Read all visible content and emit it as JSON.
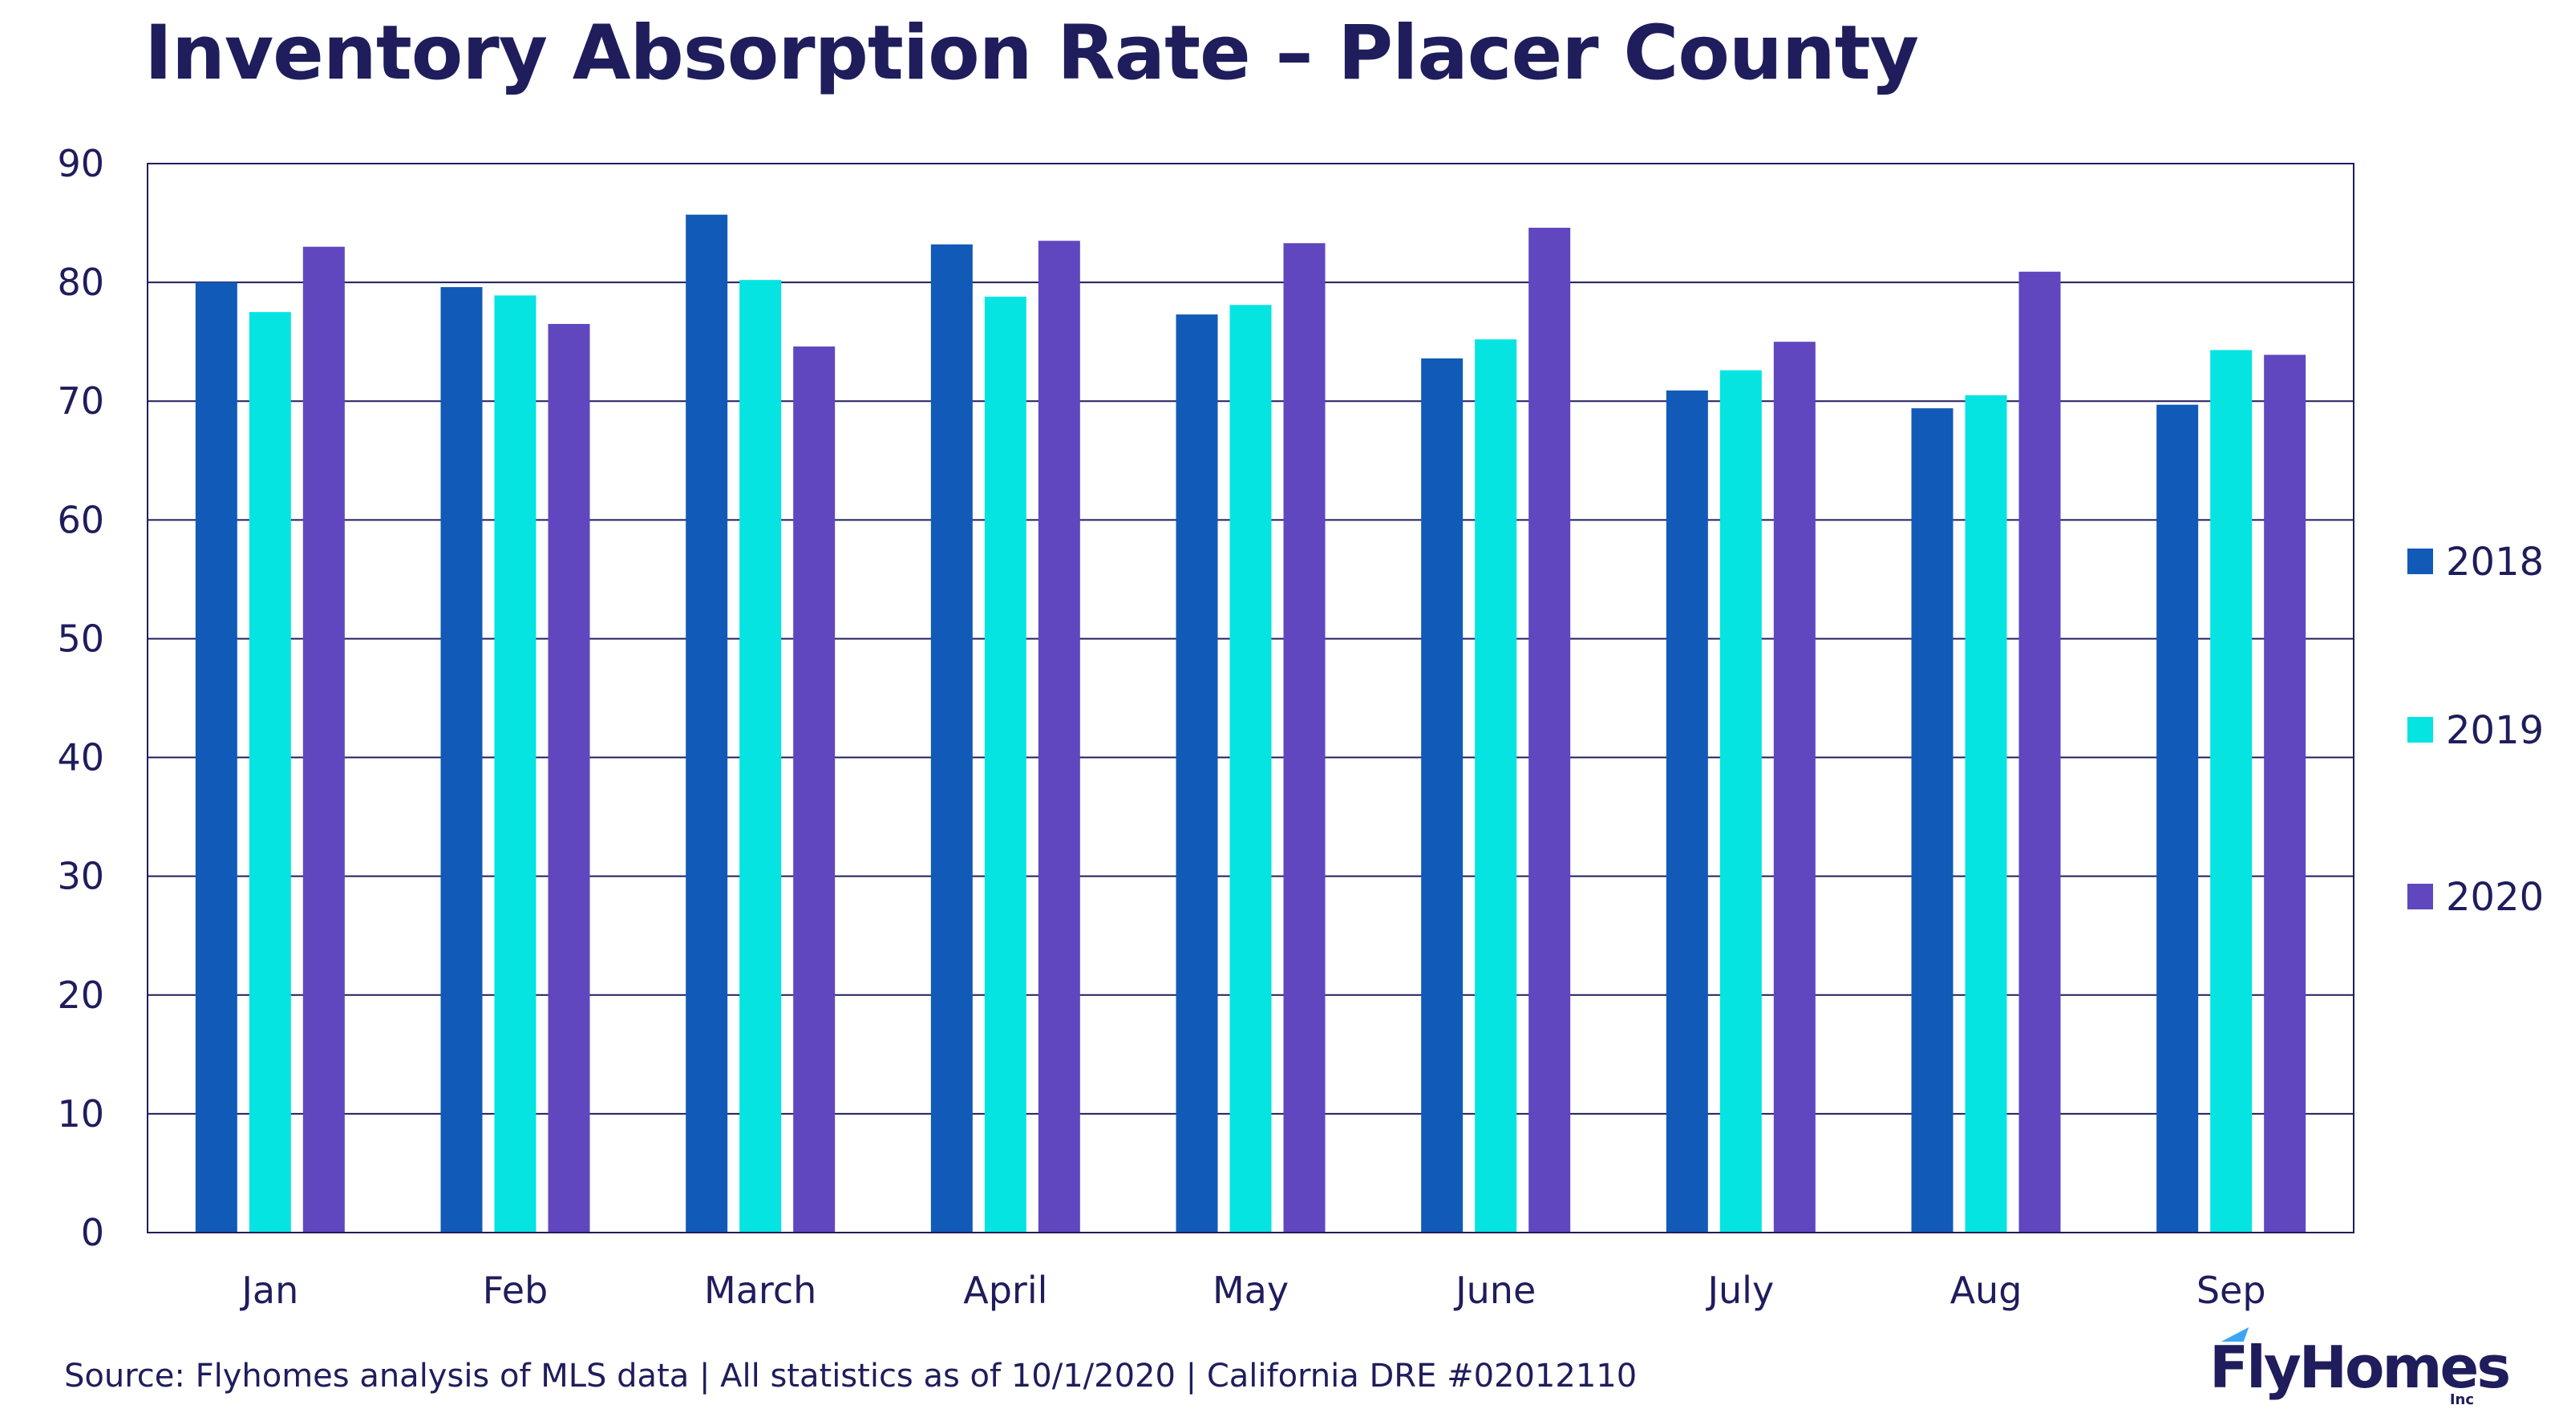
{
  "chart_data": {
    "type": "bar",
    "title": "Inventory Absorption Rate – Placer County",
    "categories": [
      "Jan",
      "Feb",
      "March",
      "April",
      "May",
      "June",
      "July",
      "Aug",
      "Sep"
    ],
    "series": [
      {
        "name": "2018",
        "color": "#125ab8",
        "values": [
          80.0,
          79.6,
          85.7,
          83.2,
          77.3,
          73.6,
          70.9,
          69.4,
          69.7
        ]
      },
      {
        "name": "2019",
        "color": "#06e4e2",
        "values": [
          77.5,
          78.9,
          80.2,
          78.8,
          78.1,
          75.2,
          72.6,
          70.5,
          74.3
        ]
      },
      {
        "name": "2020",
        "color": "#6047bf",
        "values": [
          83.0,
          76.5,
          74.6,
          83.5,
          83.3,
          84.6,
          75.0,
          80.9,
          73.9
        ]
      }
    ],
    "ylim": [
      0,
      90
    ],
    "yticks": [
      0,
      10,
      20,
      30,
      40,
      50,
      60,
      70,
      80,
      90
    ],
    "grid": true,
    "legend": "right",
    "xlabel": "",
    "ylabel": ""
  },
  "footer": {
    "source": "Source: Flyhomes analysis of MLS data | All statistics as of 10/1/2020 | California DRE #02012110"
  },
  "logo": {
    "name": "FlyHomes",
    "suffix": "Inc"
  },
  "colors": {
    "text": "#1f1d5c",
    "grid": "#1f1d5c"
  }
}
